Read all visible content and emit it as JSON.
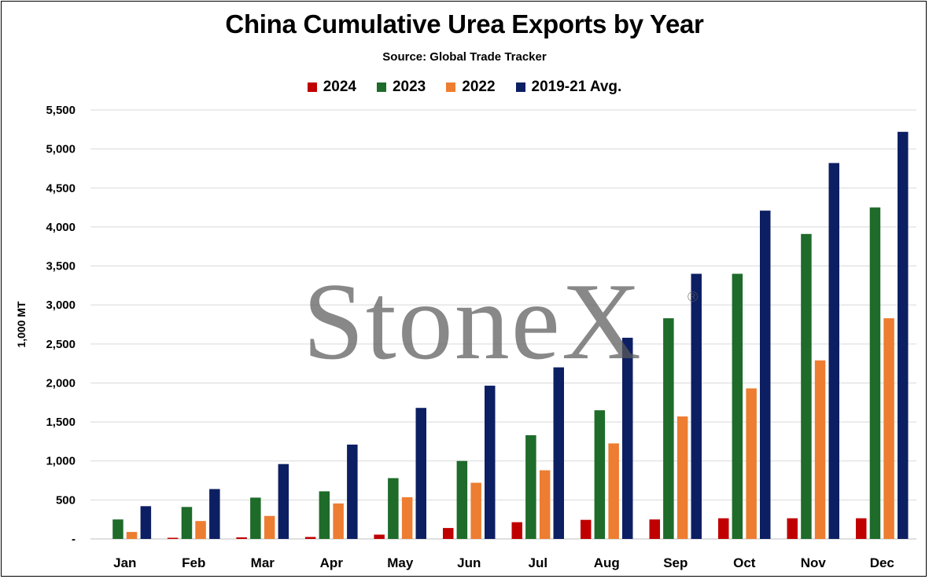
{
  "chart_data": {
    "type": "bar",
    "title": "China Cumulative Urea Exports by Year",
    "subtitle": "Source: Global Trade Tracker",
    "ylabel": "1,000 MT",
    "xlabel": "",
    "ylim": [
      0,
      5500
    ],
    "yticks": [
      0,
      500,
      1000,
      1500,
      2000,
      2500,
      3000,
      3500,
      4000,
      4500,
      5000,
      5500
    ],
    "ytick_labels": [
      "-",
      "500",
      "1,000",
      "1,500",
      "2,000",
      "2,500",
      "3,000",
      "3,500",
      "4,000",
      "4,500",
      "5,000",
      "5,500"
    ],
    "categories": [
      "Jan",
      "Feb",
      "Mar",
      "Apr",
      "May",
      "Jun",
      "Jul",
      "Aug",
      "Sep",
      "Oct",
      "Nov",
      "Dec"
    ],
    "grid": true,
    "legend_position": "top",
    "series": [
      {
        "name": "2024",
        "color": "#c00000",
        "values": [
          0,
          15,
          20,
          25,
          55,
          140,
          215,
          245,
          250,
          265,
          265,
          265
        ]
      },
      {
        "name": "2023",
        "color": "#1e6b2a",
        "values": [
          250,
          410,
          530,
          610,
          780,
          1000,
          1330,
          1650,
          2830,
          3400,
          3910,
          4250
        ]
      },
      {
        "name": "2022",
        "color": "#ed7d31",
        "values": [
          90,
          230,
          295,
          455,
          535,
          720,
          880,
          1225,
          1570,
          1930,
          2290,
          2830
        ]
      },
      {
        "name": "2019-21 Avg.",
        "color": "#0d1f63",
        "values": [
          420,
          640,
          960,
          1210,
          1680,
          1965,
          2200,
          2580,
          3400,
          4210,
          4820,
          5220
        ]
      }
    ]
  },
  "watermark": {
    "text": "StoneX",
    "mark": "®"
  }
}
